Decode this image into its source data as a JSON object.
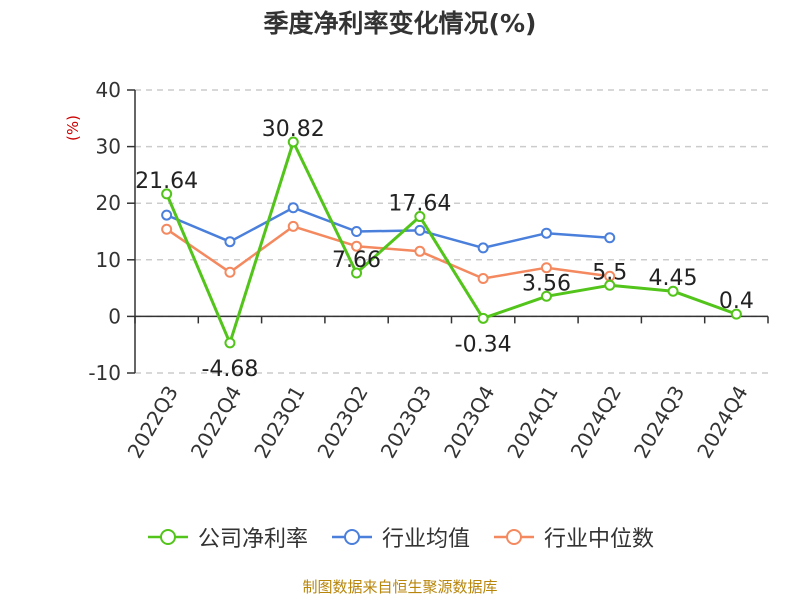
{
  "chart_data": {
    "type": "line",
    "title": "季度净利率变化情况(%)",
    "ylabel": "(%)",
    "ylim": [
      -10,
      40
    ],
    "yticks": [
      -10,
      0,
      10,
      20,
      30,
      40
    ],
    "grid": true,
    "legend_position": "bottom",
    "categories": [
      "2022Q3",
      "2022Q4",
      "2023Q1",
      "2023Q2",
      "2023Q3",
      "2023Q4",
      "2024Q1",
      "2024Q2",
      "2024Q3",
      "2024Q4"
    ],
    "series": [
      {
        "name": "公司净利率",
        "color": "#52c41a",
        "values": [
          21.64,
          -4.68,
          30.82,
          7.66,
          17.64,
          -0.34,
          3.56,
          5.5,
          4.45,
          0.4
        ],
        "labels": [
          "21.64",
          "-4.68",
          "30.82",
          "7.66",
          "17.64",
          "-0.34",
          "3.56",
          "5.5",
          "4.45",
          "0.4"
        ]
      },
      {
        "name": "行业均值",
        "color": "#4a7fdc",
        "values": [
          17.9,
          13.2,
          19.2,
          15.0,
          15.2,
          12.1,
          14.7,
          13.9,
          null,
          null
        ]
      },
      {
        "name": "行业中位数",
        "color": "#f4895f",
        "values": [
          15.4,
          7.8,
          15.9,
          12.4,
          11.5,
          6.7,
          8.6,
          7.1,
          null,
          null
        ]
      }
    ]
  },
  "source": "制图数据来自恒生聚源数据库"
}
